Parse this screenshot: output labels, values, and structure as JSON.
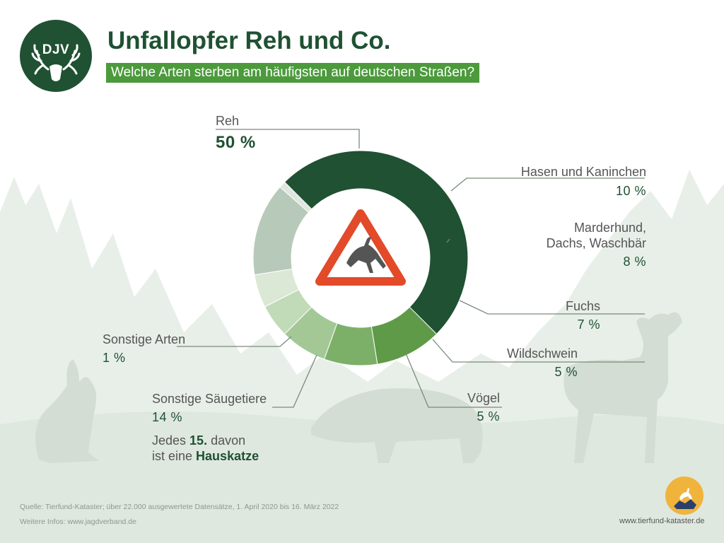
{
  "header": {
    "logo_text": "DJV",
    "title": "Unfallopfer Reh und Co.",
    "subtitle": "Welche Arten sterben am häufigsten auf deutschen Straßen?"
  },
  "chart_data": {
    "type": "donut",
    "unit": "%",
    "center_icon": "deer-crossing-warning-icon",
    "slices": [
      {
        "label": "Reh",
        "value": 50,
        "value_label": "50 %",
        "color": "#1f5132"
      },
      {
        "label": "Hasen und Kaninchen",
        "value": 10,
        "value_label": "10 %",
        "color": "#5e9a48"
      },
      {
        "label": "Marderhund, Dachs, Waschbär",
        "label_lines": [
          "Marderhund,",
          "Dachs, Waschbär"
        ],
        "value": 8,
        "value_label": "8 %",
        "color": "#7cb068"
      },
      {
        "label": "Fuchs",
        "value": 7,
        "value_label": "7 %",
        "color": "#a3c896"
      },
      {
        "label": "Wildschwein",
        "value": 5,
        "value_label": "5 %",
        "color": "#c1dab8"
      },
      {
        "label": "Vögel",
        "value": 5,
        "value_label": "5 %",
        "color": "#dbe8d6"
      },
      {
        "label": "Sonstige Säugetiere",
        "value": 14,
        "value_label": "14 %",
        "color": "#b7c9b8"
      },
      {
        "label": "Sonstige Arten",
        "value": 1,
        "value_label": "1 %",
        "color": "#dfe6df"
      }
    ],
    "note": {
      "line1_pre": "Jedes ",
      "line1_bold": "15.",
      "line1_post": " davon",
      "line2_pre": "ist eine ",
      "line2_bold": "Hauskatze"
    }
  },
  "footer": {
    "source": "Quelle: Tierfund-Kataster; über 22.000 ausgewertete Datensätze, 1. April 2020 bis 16. März 2022",
    "info": "Weitere Infos: www.jagdverband.de",
    "website": "www.tierfund-kataster.de"
  },
  "colors": {
    "dark_green": "#1f5132",
    "accent_green": "#4c9a3c",
    "warning_red": "#e24a2a",
    "background_silhouette": "#e3ebe3"
  }
}
